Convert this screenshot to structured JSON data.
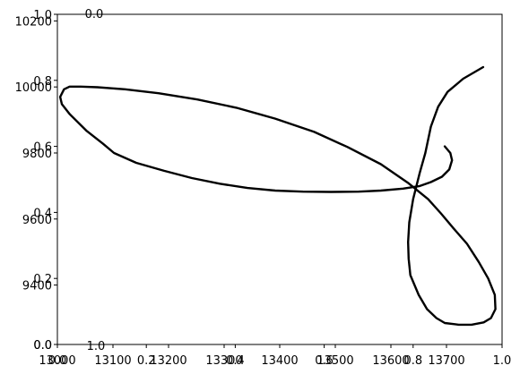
{
  "chart_data": [
    {
      "type": "line",
      "xlim": [
        0.0,
        1.0
      ],
      "ylim": [
        0.0,
        1.0
      ],
      "x_ticks": [
        0.0,
        0.2,
        0.4,
        0.6,
        0.8,
        1.0
      ],
      "y_ticks": [
        0.0,
        0.2,
        0.4,
        0.6,
        0.8,
        1.0
      ],
      "x_tick_labels": [
        "0.0",
        "0.2",
        "0.4",
        "0.6",
        "0.8",
        "1.0"
      ],
      "y_tick_labels": [
        "0.0",
        "0.2",
        "0.4",
        "0.6",
        "0.8",
        "1.0"
      ],
      "series": []
    },
    {
      "type": "line",
      "xlim": [
        13000,
        13800
      ],
      "ylim": [
        9220,
        10220
      ],
      "x_ticks": [
        13000,
        13100,
        13200,
        13300,
        13400,
        13500,
        13600,
        13700
      ],
      "x_tick_labels": [
        "13000",
        "13100",
        "13200",
        "13300",
        "13400",
        "13500",
        "13600",
        "13700"
      ],
      "y_ticks": [
        9400,
        9600,
        9800,
        10000,
        10200
      ],
      "y_tick_labels": [
        "9400",
        "9600",
        "9800",
        "10000",
        "10200"
      ],
      "series": [
        {
          "color": "#000000",
          "x": [
            13697,
            13707,
            13710,
            13705,
            13692,
            13672,
            13652,
            13622,
            13582,
            13542,
            13492,
            13442,
            13392,
            13342,
            13292,
            13242,
            13192,
            13142,
            13102,
            13082,
            13052,
            13022,
            13008,
            13005,
            13012,
            13022,
            13042,
            13072,
            13122,
            13182,
            13252,
            13322,
            13392,
            13462,
            13522,
            13582,
            13632,
            13667,
            13690,
            13712,
            13737,
            13758,
            13775,
            13787,
            13788,
            13780,
            13767,
            13745,
            13722,
            13697,
            13682,
            13665,
            13650,
            13635,
            13632,
            13631,
            13633,
            13640,
            13652,
            13662,
            13672,
            13685,
            13702,
            13730,
            13766
          ],
          "y": [
            9820,
            9800,
            9778,
            9750,
            9728,
            9712,
            9700,
            9692,
            9686,
            9683,
            9682,
            9683,
            9686,
            9694,
            9707,
            9724,
            9746,
            9770,
            9800,
            9828,
            9868,
            9918,
            9948,
            9970,
            9993,
            10001,
            10001,
            9999,
            9993,
            9981,
            9962,
            9937,
            9904,
            9864,
            9818,
            9766,
            9708,
            9660,
            9617,
            9573,
            9525,
            9470,
            9420,
            9370,
            9327,
            9300,
            9287,
            9280,
            9280,
            9285,
            9300,
            9327,
            9370,
            9430,
            9480,
            9530,
            9590,
            9660,
            9740,
            9800,
            9880,
            9940,
            9985,
            10025,
            10060
          ]
        }
      ]
    },
    {
      "type": "line",
      "xlim": [
        0.0,
        1.0
      ],
      "ylim": [
        0.0,
        1.0
      ],
      "x_ticks": [
        0.0,
        1.0
      ],
      "y_ticks": [
        0.0
      ],
      "x_tick_labels": [
        "0.0",
        "1.0"
      ],
      "y_tick_labels": [
        "0.0"
      ],
      "series": []
    }
  ]
}
